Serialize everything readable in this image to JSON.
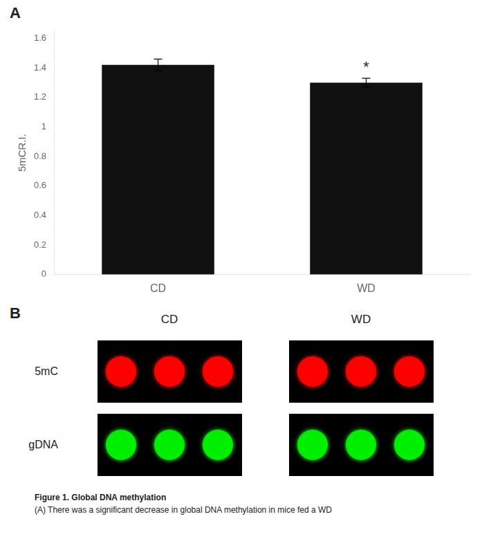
{
  "chart_data": {
    "type": "bar",
    "categories": [
      "CD",
      "WD"
    ],
    "values": [
      1.42,
      1.3
    ],
    "errors": [
      0.04,
      0.03
    ],
    "color": "#111111",
    "ylabel": "5mCR.I.",
    "ylim": [
      0,
      1.65
    ],
    "yticks": [
      0,
      0.2,
      0.4,
      0.6,
      0.8,
      1,
      1.2,
      1.4,
      1.6
    ],
    "grid": false,
    "annotations": [
      {
        "text": "A"
      },
      {
        "text": "*",
        "x": "WD"
      },
      {
        "text": "B"
      },
      {
        "text": "CD"
      },
      {
        "text": "WD"
      },
      {
        "text": "5mC"
      },
      {
        "text": "gDNA"
      },
      {
        "text": "Figure 1. Global DNA methylation"
      },
      {
        "text": "(A) There was a significant decrease in global DNA methylation in mice fed a WD"
      }
    ]
  }
}
